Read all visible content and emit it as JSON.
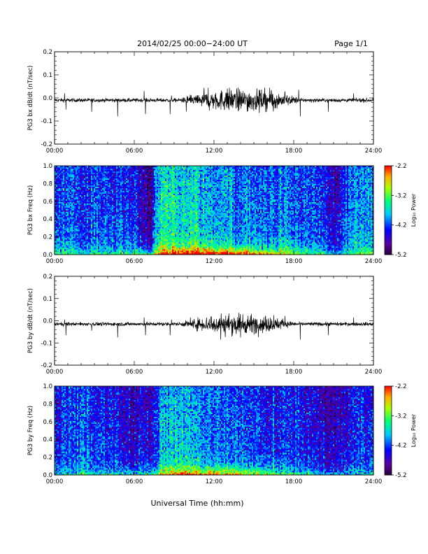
{
  "header": {
    "title": "2014/02/25  00:00−24:00 UT",
    "page": "Page 1/1"
  },
  "footer": {
    "xlabel": "Universal Time (hh:mm)"
  },
  "colors": {
    "axis": "#000000",
    "trace": "#000000",
    "background": "#ffffff"
  },
  "chart_data": [
    {
      "type": "line",
      "ylabel": "PG3 bx dB/dt (nT/sec)",
      "xlim": [
        0,
        24
      ],
      "ylim": [
        -0.2,
        0.2
      ],
      "x_ticks": [
        "00:00",
        "06:00",
        "12:00",
        "18:00",
        "24:00"
      ],
      "y_ticks": [
        "0.2",
        "0.1",
        "0.0",
        "-0.1",
        "-0.2"
      ],
      "baseline": -0.01,
      "quiet_noise": 0.004,
      "active_interval": [
        9.5,
        18.5
      ],
      "active_noise": 0.02,
      "spikes": [
        {
          "t": 0.75,
          "v": 0.03
        },
        {
          "t": 0.85,
          "v": -0.04
        },
        {
          "t": 2.8,
          "v": -0.05
        },
        {
          "t": 4.75,
          "v": -0.07
        },
        {
          "t": 6.75,
          "v": 0.04
        },
        {
          "t": 6.85,
          "v": -0.06
        },
        {
          "t": 8.7,
          "v": -0.06
        },
        {
          "t": 8.8,
          "v": 0.02
        },
        {
          "t": 13.0,
          "v": 0.05
        },
        {
          "t": 14.5,
          "v": -0.05
        },
        {
          "t": 16.3,
          "v": 0.04
        },
        {
          "t": 18.5,
          "v": -0.07
        },
        {
          "t": 20.6,
          "v": -0.05
        },
        {
          "t": 22.5,
          "v": 0.03
        }
      ]
    },
    {
      "type": "heatmap",
      "ylabel": "PG3 bx Freq (Hz)",
      "xlim": [
        0,
        24
      ],
      "ylim": [
        0,
        1.0
      ],
      "x_ticks": [
        "00:00",
        "06:00",
        "12:00",
        "18:00",
        "24:00"
      ],
      "y_ticks": [
        "1.0",
        "0.8",
        "0.6",
        "0.4",
        "0.2",
        "0.0"
      ],
      "colorbar": {
        "label": "Log₁₀ Power",
        "ticks": [
          "-2.2",
          "-3.2",
          "-4.2",
          "-5.2"
        ],
        "range": [
          -5.2,
          -2.2
        ]
      },
      "profile": [
        {
          "t": 0,
          "v": -4.2
        },
        {
          "t": 0.6,
          "v": -4.1
        },
        {
          "t": 1.2,
          "v": -4.0
        },
        {
          "t": 2.0,
          "v": -4.2
        },
        {
          "t": 3.0,
          "v": -4.1
        },
        {
          "t": 4.0,
          "v": -4.2
        },
        {
          "t": 5.0,
          "v": -4.1
        },
        {
          "t": 6.0,
          "v": -4.3
        },
        {
          "t": 6.8,
          "v": -4.7
        },
        {
          "t": 7.3,
          "v": -4.8
        },
        {
          "t": 7.6,
          "v": -3.8
        },
        {
          "t": 8.3,
          "v": -3.4
        },
        {
          "t": 9.5,
          "v": -3.5
        },
        {
          "t": 11.0,
          "v": -3.7
        },
        {
          "t": 12.5,
          "v": -3.8
        },
        {
          "t": 14.0,
          "v": -3.9
        },
        {
          "t": 15.5,
          "v": -4.0
        },
        {
          "t": 17.0,
          "v": -4.0
        },
        {
          "t": 18.5,
          "v": -4.1
        },
        {
          "t": 19.8,
          "v": -4.2
        },
        {
          "t": 20.5,
          "v": -4.4
        },
        {
          "t": 21.2,
          "v": -4.6
        },
        {
          "t": 22.0,
          "v": -4.2
        },
        {
          "t": 23.0,
          "v": -3.8
        },
        {
          "t": 24.0,
          "v": -3.9
        }
      ],
      "low_freq_boost": 1.4,
      "low_freq_peak_t": 12.0
    },
    {
      "type": "line",
      "ylabel": "PG3 by dB/dt (nT/sec)",
      "xlim": [
        0,
        24
      ],
      "ylim": [
        -0.2,
        0.2
      ],
      "x_ticks": [
        "00:00",
        "06:00",
        "12:00",
        "18:00",
        "24:00"
      ],
      "y_ticks": [
        "0.2",
        "0.1",
        "0.0",
        "-0.1",
        "-0.2"
      ],
      "baseline": -0.015,
      "quiet_noise": 0.004,
      "active_interval": [
        9.5,
        18.0
      ],
      "active_noise": 0.018,
      "spikes": [
        {
          "t": 0.75,
          "v": 0.02
        },
        {
          "t": 0.85,
          "v": -0.05
        },
        {
          "t": 2.8,
          "v": -0.03
        },
        {
          "t": 4.75,
          "v": -0.06
        },
        {
          "t": 6.75,
          "v": 0.03
        },
        {
          "t": 6.85,
          "v": -0.05
        },
        {
          "t": 8.7,
          "v": -0.05
        },
        {
          "t": 8.8,
          "v": 0.02
        },
        {
          "t": 12.5,
          "v": -0.07
        },
        {
          "t": 14.0,
          "v": -0.06
        },
        {
          "t": 16.5,
          "v": 0.04
        },
        {
          "t": 18.5,
          "v": -0.07
        },
        {
          "t": 20.6,
          "v": -0.05
        },
        {
          "t": 22.5,
          "v": 0.03
        }
      ]
    },
    {
      "type": "heatmap",
      "ylabel": "PG3 by Freq (Hz)",
      "xlim": [
        0,
        24
      ],
      "ylim": [
        0,
        1.0
      ],
      "x_ticks": [
        "00:00",
        "06:00",
        "12:00",
        "18:00",
        "24:00"
      ],
      "y_ticks": [
        "1.0",
        "0.8",
        "0.6",
        "0.4",
        "0.2",
        "0.0"
      ],
      "colorbar": {
        "label": "Log₁₀ Power",
        "ticks": [
          "-2.2",
          "-3.2",
          "-4.2",
          "-5.2"
        ],
        "range": [
          -5.2,
          -2.2
        ]
      },
      "profile": [
        {
          "t": 0,
          "v": -4.3
        },
        {
          "t": 1.0,
          "v": -4.2
        },
        {
          "t": 2.0,
          "v": -4.1
        },
        {
          "t": 3.0,
          "v": -4.2
        },
        {
          "t": 4.0,
          "v": -4.3
        },
        {
          "t": 5.0,
          "v": -4.4
        },
        {
          "t": 6.0,
          "v": -4.5
        },
        {
          "t": 7.0,
          "v": -4.5
        },
        {
          "t": 7.5,
          "v": -4.4
        },
        {
          "t": 8.0,
          "v": -3.8
        },
        {
          "t": 9.5,
          "v": -3.7
        },
        {
          "t": 11.0,
          "v": -3.9
        },
        {
          "t": 12.5,
          "v": -4.0
        },
        {
          "t": 14.0,
          "v": -4.1
        },
        {
          "t": 15.5,
          "v": -4.2
        },
        {
          "t": 17.0,
          "v": -4.3
        },
        {
          "t": 18.5,
          "v": -4.3
        },
        {
          "t": 20.0,
          "v": -4.5
        },
        {
          "t": 21.0,
          "v": -4.6
        },
        {
          "t": 22.0,
          "v": -4.4
        },
        {
          "t": 23.0,
          "v": -4.2
        },
        {
          "t": 24.0,
          "v": -4.3
        }
      ],
      "low_freq_boost": 1.2,
      "low_freq_peak_t": 12.0
    }
  ]
}
